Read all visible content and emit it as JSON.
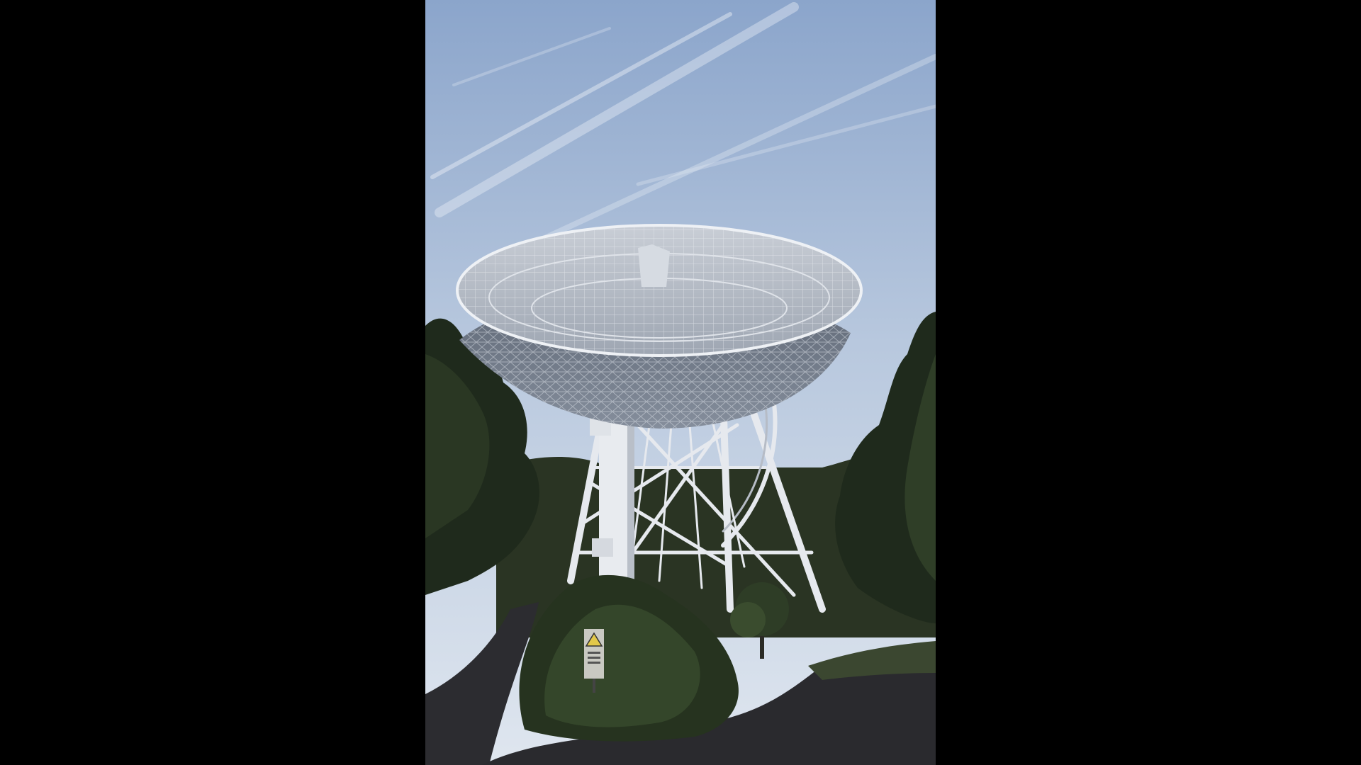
{
  "scene": {
    "subject": "radio-telescope",
    "background_color": "#000000",
    "colors": {
      "sky_top": "#8fa8cd",
      "sky_bottom": "#d9e2ee",
      "structure": "#e4e7ec",
      "structure_shadow": "#8e96a4",
      "dish_underside": "#6f7886",
      "foliage_dark": "#1f2a1c",
      "foliage_mid": "#35472c",
      "road": "#2c2c30"
    },
    "icons": [
      "warning-sign-icon"
    ]
  }
}
